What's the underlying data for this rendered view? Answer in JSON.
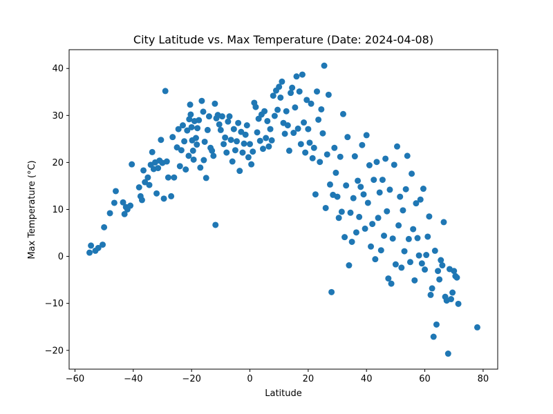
{
  "chart_data": {
    "type": "scatter",
    "title": "City Latitude vs. Max Temperature (Date: 2024-04-08)",
    "xlabel": "Latitude",
    "ylabel": "Max Temperature (°C)",
    "xlim": [
      -62,
      85
    ],
    "ylim": [
      -24,
      44
    ],
    "xticks": [
      -60,
      -40,
      -20,
      0,
      20,
      40,
      60,
      80
    ],
    "yticks": [
      -20,
      -10,
      0,
      10,
      20,
      30,
      40
    ],
    "grid": false,
    "marker_color": "#1f77b4",
    "points": [
      [
        -55,
        0.8
      ],
      [
        -54.5,
        2.3
      ],
      [
        -53,
        1.2
      ],
      [
        -52,
        1.8
      ],
      [
        -50.5,
        2.5
      ],
      [
        -50,
        6.2
      ],
      [
        -48,
        9.2
      ],
      [
        -46.5,
        11.4
      ],
      [
        -46,
        13.9
      ],
      [
        -43.5,
        11.5
      ],
      [
        -43,
        9
      ],
      [
        -42.5,
        10.5
      ],
      [
        -42,
        10
      ],
      [
        -41,
        10.8
      ],
      [
        -40.5,
        19.6
      ],
      [
        -38,
        14.7
      ],
      [
        -37.5,
        12.8
      ],
      [
        -37,
        12
      ],
      [
        -36.5,
        18.3
      ],
      [
        -36,
        15.8
      ],
      [
        -35,
        16.8
      ],
      [
        -34.5,
        15.2
      ],
      [
        -34,
        19.5
      ],
      [
        -33.5,
        22.2
      ],
      [
        -33,
        18.6
      ],
      [
        -32.5,
        20
      ],
      [
        -32,
        13.4
      ],
      [
        -31.5,
        18.8
      ],
      [
        -31,
        20.4
      ],
      [
        -30.5,
        24.8
      ],
      [
        -30,
        19.9
      ],
      [
        -29.5,
        12.3
      ],
      [
        -29,
        35.2
      ],
      [
        -28.5,
        20.2
      ],
      [
        -28,
        16.8
      ],
      [
        -27,
        12.8
      ],
      [
        -26.5,
        25.4
      ],
      [
        -26,
        16.8
      ],
      [
        -25,
        23.2
      ],
      [
        -24.5,
        27.1
      ],
      [
        -24,
        19.2
      ],
      [
        -23.5,
        22.6
      ],
      [
        -23,
        27.9
      ],
      [
        -22.5,
        24.5
      ],
      [
        -22,
        18.5
      ],
      [
        -21.5,
        26.8
      ],
      [
        -21,
        21.4
      ],
      [
        -20.8,
        29.2
      ],
      [
        -20.5,
        32.3
      ],
      [
        -20.3,
        30.2
      ],
      [
        -20,
        27.5
      ],
      [
        -19.8,
        24.7
      ],
      [
        -19.5,
        22.5
      ],
      [
        -19.3,
        20.6
      ],
      [
        -19,
        28.8
      ],
      [
        -18.5,
        25.2
      ],
      [
        -18.2,
        23.8
      ],
      [
        -18,
        27.3
      ],
      [
        -17.5,
        29
      ],
      [
        -17,
        18.9
      ],
      [
        -16.5,
        33.1
      ],
      [
        -16,
        30.8
      ],
      [
        -15.8,
        20.5
      ],
      [
        -15.5,
        24.4
      ],
      [
        -15,
        16.7
      ],
      [
        -14.5,
        26.9
      ],
      [
        -14,
        29.8
      ],
      [
        -13.5,
        23.1
      ],
      [
        -13,
        22.5
      ],
      [
        -12.5,
        21.4
      ],
      [
        -12,
        32.5
      ],
      [
        -11.8,
        6.7
      ],
      [
        -11.5,
        29.4
      ],
      [
        -11,
        30.1
      ],
      [
        -10.5,
        28.1
      ],
      [
        -10,
        26.9
      ],
      [
        -9.5,
        29.8
      ],
      [
        -9,
        23.9
      ],
      [
        -8.5,
        25.3
      ],
      [
        -8,
        22.1
      ],
      [
        -7.5,
        28.7
      ],
      [
        -7,
        29.8
      ],
      [
        -6.5,
        24.8
      ],
      [
        -6,
        20.2
      ],
      [
        -5.5,
        27.1
      ],
      [
        -5,
        22.6
      ],
      [
        -4.5,
        24.5
      ],
      [
        -4,
        28.4
      ],
      [
        -3.5,
        18.2
      ],
      [
        -3,
        26.5
      ],
      [
        -2.5,
        22.1
      ],
      [
        -2,
        24
      ],
      [
        -1.5,
        25.9
      ],
      [
        -1,
        27.9
      ],
      [
        -0.5,
        21.1
      ],
      [
        0,
        23.9
      ],
      [
        0.5,
        19.6
      ],
      [
        1,
        22.3
      ],
      [
        1.5,
        32.7
      ],
      [
        2,
        31.8
      ],
      [
        2.5,
        26.4
      ],
      [
        3,
        29.3
      ],
      [
        3.5,
        24.6
      ],
      [
        4,
        30.2
      ],
      [
        4.5,
        22.9
      ],
      [
        5,
        30.9
      ],
      [
        5.5,
        25.2
      ],
      [
        6,
        28.8
      ],
      [
        6.5,
        23.4
      ],
      [
        7,
        27.1
      ],
      [
        7.5,
        24.7
      ],
      [
        8,
        34.2
      ],
      [
        8.5,
        29.9
      ],
      [
        9,
        35.3
      ],
      [
        9.5,
        31.2
      ],
      [
        10,
        36.1
      ],
      [
        10.5,
        33.8
      ],
      [
        11,
        37.2
      ],
      [
        11.5,
        28.4
      ],
      [
        12,
        26.1
      ],
      [
        12.5,
        30.9
      ],
      [
        13,
        27.9
      ],
      [
        13.5,
        22.5
      ],
      [
        14,
        34.8
      ],
      [
        14.5,
        35.9
      ],
      [
        15,
        26.3
      ],
      [
        15.5,
        31.7
      ],
      [
        16,
        38.3
      ],
      [
        16.5,
        27.2
      ],
      [
        17,
        35.1
      ],
      [
        17.5,
        23.9
      ],
      [
        18,
        38.7
      ],
      [
        18.5,
        28.5
      ],
      [
        19,
        22.1
      ],
      [
        19.5,
        33.3
      ],
      [
        20,
        27.1
      ],
      [
        20.5,
        24.2
      ],
      [
        21,
        32.5
      ],
      [
        21.5,
        20.9
      ],
      [
        22,
        23.1
      ],
      [
        22.5,
        13.2
      ],
      [
        23,
        35.1
      ],
      [
        23.5,
        29.1
      ],
      [
        24,
        20.1
      ],
      [
        24.5,
        31.3
      ],
      [
        25,
        26.2
      ],
      [
        25.5,
        40.6
      ],
      [
        26,
        10.3
      ],
      [
        26.5,
        21.7
      ],
      [
        27,
        34.4
      ],
      [
        27.5,
        15.3
      ],
      [
        28,
        -7.6
      ],
      [
        28.5,
        13.1
      ],
      [
        29,
        23.1
      ],
      [
        29.5,
        17.8
      ],
      [
        30,
        12.7
      ],
      [
        30.5,
        8.2
      ],
      [
        31,
        21.2
      ],
      [
        31.5,
        9.5
      ],
      [
        32,
        30.3
      ],
      [
        32.5,
        4.1
      ],
      [
        33,
        15.1
      ],
      [
        33.5,
        25.4
      ],
      [
        34,
        -1.9
      ],
      [
        34.5,
        9.3
      ],
      [
        35,
        3.1
      ],
      [
        35.5,
        12.4
      ],
      [
        36,
        21.3
      ],
      [
        36.5,
        5.1
      ],
      [
        37,
        16.1
      ],
      [
        37.5,
        8.4
      ],
      [
        38,
        14.8
      ],
      [
        38.5,
        23.7
      ],
      [
        39,
        13.2
      ],
      [
        39.5,
        5.9
      ],
      [
        40,
        25.8
      ],
      [
        40.5,
        11.4
      ],
      [
        41,
        19.4
      ],
      [
        41.5,
        2.1
      ],
      [
        42,
        6.9
      ],
      [
        42.5,
        16.3
      ],
      [
        43,
        -0.6
      ],
      [
        43.5,
        20.1
      ],
      [
        44,
        8.2
      ],
      [
        44.5,
        13.6
      ],
      [
        45,
        1.3
      ],
      [
        45.5,
        16.3
      ],
      [
        46,
        4.4
      ],
      [
        46.5,
        20.8
      ],
      [
        47,
        9.6
      ],
      [
        47.5,
        -4.7
      ],
      [
        48,
        14.2
      ],
      [
        48.5,
        -5.8
      ],
      [
        49,
        3.8
      ],
      [
        49.5,
        19.5
      ],
      [
        50,
        -1.7
      ],
      [
        50.5,
        23.4
      ],
      [
        51,
        6.6
      ],
      [
        51.5,
        12.7
      ],
      [
        52,
        -2.4
      ],
      [
        52.5,
        9.8
      ],
      [
        53,
        1.1
      ],
      [
        53.5,
        14.3
      ],
      [
        54,
        21.4
      ],
      [
        54.5,
        3.7
      ],
      [
        55,
        -1.2
      ],
      [
        55.5,
        17.6
      ],
      [
        56,
        5.8
      ],
      [
        56.5,
        -5.1
      ],
      [
        57,
        11.3
      ],
      [
        57.5,
        3.9
      ],
      [
        58,
        0.2
      ],
      [
        58.5,
        12.1
      ],
      [
        59,
        -1.5
      ],
      [
        59.5,
        14.4
      ],
      [
        60,
        -2.8
      ],
      [
        60.5,
        0.3
      ],
      [
        61,
        4.2
      ],
      [
        61.5,
        8.5
      ],
      [
        62,
        -8.2
      ],
      [
        62.5,
        -6.8
      ],
      [
        63,
        -17.1
      ],
      [
        63.5,
        1.2
      ],
      [
        64,
        -14.5
      ],
      [
        64.5,
        -3.1
      ],
      [
        65,
        -4.9
      ],
      [
        65.5,
        -0.8
      ],
      [
        66,
        -1.9
      ],
      [
        66.5,
        7.3
      ],
      [
        67,
        -8.6
      ],
      [
        67.5,
        -9.4
      ],
      [
        68,
        -20.7
      ],
      [
        68.5,
        -2.7
      ],
      [
        69,
        -9.1
      ],
      [
        69.5,
        -7.7
      ],
      [
        70,
        -3.1
      ],
      [
        70.5,
        -4.2
      ],
      [
        71,
        -4.5
      ],
      [
        71.5,
        -10.1
      ],
      [
        78,
        -15.1
      ]
    ]
  }
}
